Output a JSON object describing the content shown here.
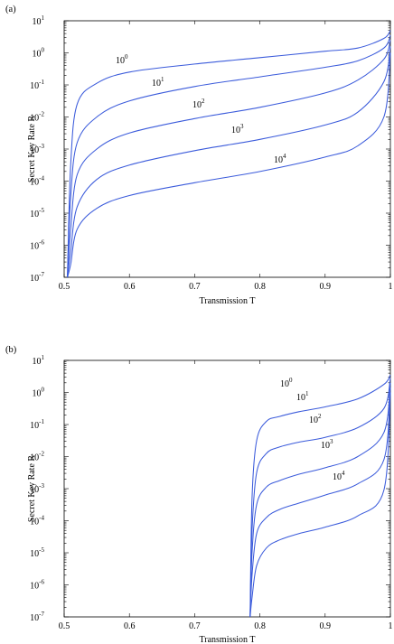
{
  "chart_data": [
    {
      "panel_label": "(a)",
      "type": "line",
      "title": "",
      "xlabel": "Transmission T",
      "ylabel": "Secret Key Rate R",
      "xlim": [
        0.5,
        1.0
      ],
      "ylim_exponent": [
        -7,
        1
      ],
      "y_scale": "log",
      "grid": false,
      "x_ticks": [
        "0.5",
        "0.6",
        "0.7",
        "0.8",
        "0.9",
        "1"
      ],
      "y_tick_exponents": [
        "1",
        "0",
        "-1",
        "-2",
        "-3",
        "-4",
        "-5",
        "-6",
        "-7"
      ],
      "series": [
        {
          "label_base": "10",
          "label_exp": "0",
          "x": [
            0.505,
            0.51,
            0.52,
            0.55,
            0.6,
            0.7,
            0.8,
            0.9,
            0.95,
            0.99,
            1.0
          ],
          "y_log10": [
            -7.0,
            -3.5,
            -1.6,
            -0.95,
            -0.6,
            -0.35,
            -0.15,
            0.05,
            0.15,
            0.45,
            0.7
          ]
        },
        {
          "label_base": "10",
          "label_exp": "1",
          "x": [
            0.505,
            0.51,
            0.52,
            0.55,
            0.6,
            0.7,
            0.8,
            0.9,
            0.95,
            0.99,
            1.0
          ],
          "y_log10": [
            -7.0,
            -4.5,
            -2.8,
            -2.0,
            -1.5,
            -1.05,
            -0.75,
            -0.45,
            -0.25,
            0.15,
            0.55
          ]
        },
        {
          "label_base": "10",
          "label_exp": "2",
          "x": [
            0.505,
            0.51,
            0.52,
            0.55,
            0.6,
            0.7,
            0.8,
            0.9,
            0.95,
            0.99,
            1.0
          ],
          "y_log10": [
            -7.0,
            -5.5,
            -3.8,
            -3.0,
            -2.5,
            -2.05,
            -1.7,
            -1.25,
            -0.85,
            -0.2,
            0.4
          ]
        },
        {
          "label_base": "10",
          "label_exp": "3",
          "x": [
            0.505,
            0.51,
            0.52,
            0.55,
            0.6,
            0.7,
            0.8,
            0.9,
            0.95,
            0.99,
            1.0
          ],
          "y_log10": [
            -7.0,
            -6.2,
            -4.8,
            -3.95,
            -3.5,
            -3.05,
            -2.7,
            -2.25,
            -1.85,
            -0.9,
            0.2
          ]
        },
        {
          "label_base": "10",
          "label_exp": "4",
          "x": [
            0.505,
            0.51,
            0.52,
            0.55,
            0.6,
            0.7,
            0.8,
            0.9,
            0.95,
            0.99,
            1.0
          ],
          "y_log10": [
            -7.0,
            -6.6,
            -5.5,
            -4.85,
            -4.45,
            -4.05,
            -3.7,
            -3.25,
            -2.9,
            -2.0,
            0.0
          ]
        }
      ]
    },
    {
      "panel_label": "(b)",
      "type": "line",
      "title": "",
      "xlabel": "Transmission T",
      "ylabel": "Secret Key Rate R",
      "xlim": [
        0.5,
        1.0
      ],
      "ylim_exponent": [
        -7,
        1
      ],
      "y_scale": "log",
      "grid": false,
      "x_ticks": [
        "0.5",
        "0.6",
        "0.7",
        "0.8",
        "0.9",
        "1"
      ],
      "y_tick_exponents": [
        "1",
        "0",
        "-1",
        "-2",
        "-3",
        "-4",
        "-5",
        "-6",
        "-7"
      ],
      "series": [
        {
          "label_base": "10",
          "label_exp": "0",
          "x": [
            0.785,
            0.788,
            0.795,
            0.81,
            0.83,
            0.86,
            0.9,
            0.95,
            0.99,
            1.0
          ],
          "y_log10": [
            -7.0,
            -3.3,
            -1.5,
            -0.9,
            -0.75,
            -0.6,
            -0.45,
            -0.2,
            0.25,
            0.55
          ]
        },
        {
          "label_base": "10",
          "label_exp": "1",
          "x": [
            0.785,
            0.788,
            0.795,
            0.81,
            0.83,
            0.86,
            0.9,
            0.95,
            0.99,
            1.0
          ],
          "y_log10": [
            -7.0,
            -4.3,
            -2.5,
            -1.9,
            -1.7,
            -1.55,
            -1.4,
            -1.1,
            -0.5,
            0.45
          ]
        },
        {
          "label_base": "10",
          "label_exp": "2",
          "x": [
            0.785,
            0.788,
            0.795,
            0.81,
            0.83,
            0.86,
            0.9,
            0.95,
            0.99,
            1.0
          ],
          "y_log10": [
            -7.0,
            -5.0,
            -3.5,
            -2.95,
            -2.75,
            -2.55,
            -2.35,
            -2.0,
            -1.25,
            0.3
          ]
        },
        {
          "label_base": "10",
          "label_exp": "3",
          "x": [
            0.785,
            0.788,
            0.795,
            0.81,
            0.83,
            0.86,
            0.9,
            0.95,
            0.99,
            1.0
          ],
          "y_log10": [
            -7.0,
            -5.7,
            -4.4,
            -3.9,
            -3.65,
            -3.45,
            -3.2,
            -2.85,
            -2.1,
            0.15
          ]
        },
        {
          "label_base": "10",
          "label_exp": "4",
          "x": [
            0.785,
            0.788,
            0.795,
            0.81,
            0.83,
            0.86,
            0.9,
            0.95,
            0.99,
            1.0
          ],
          "y_log10": [
            -7.0,
            -6.4,
            -5.4,
            -4.85,
            -4.6,
            -4.4,
            -4.2,
            -3.85,
            -3.05,
            0.0
          ]
        }
      ]
    }
  ]
}
